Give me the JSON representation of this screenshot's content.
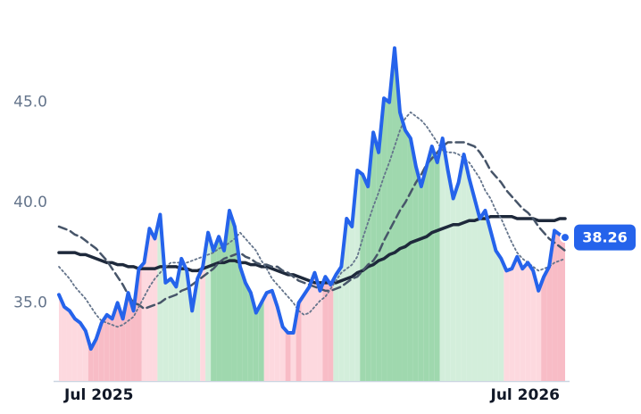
{
  "chart_data": {
    "type": "line",
    "categories": [
      null,
      null,
      null,
      null,
      null,
      null,
      null,
      "Jul 2025",
      null,
      null,
      null,
      null,
      null,
      null,
      null,
      null,
      null,
      null,
      null,
      null,
      null,
      null,
      null,
      null,
      null,
      null,
      null,
      null,
      null,
      null,
      null,
      null,
      null,
      null,
      null,
      null,
      null,
      null,
      null,
      null,
      null,
      null,
      null,
      null,
      null,
      null,
      null,
      null,
      null,
      null,
      null,
      null,
      null,
      null,
      null,
      null,
      null,
      null,
      null,
      null,
      null,
      null,
      null,
      null,
      null,
      null,
      null,
      null,
      null,
      null,
      null,
      null,
      null,
      null,
      null,
      null,
      null,
      null,
      null,
      null,
      null,
      null,
      null,
      null,
      null,
      null,
      null,
      "Jul 2026",
      null,
      null,
      null,
      null,
      null,
      null,
      null,
      null
    ],
    "ylim": [
      31.1,
      50.1
    ],
    "yticks": [
      {
        "value": 35,
        "label": "35.0"
      },
      {
        "value": 40,
        "label": "40.0"
      },
      {
        "value": 45,
        "label": "45.0"
      }
    ],
    "series": [
      {
        "color": "#2563eb",
        "style": "solid",
        "width": 4,
        "fill_under": true,
        "values": [
          35.4,
          34.8,
          34.6,
          34.2,
          34.0,
          33.6,
          32.7,
          33.2,
          34.0,
          34.4,
          34.2,
          35.0,
          34.2,
          35.5,
          34.6,
          36.7,
          37.0,
          38.7,
          38.2,
          39.4,
          36.0,
          36.2,
          35.8,
          37.2,
          36.6,
          34.6,
          36.2,
          36.8,
          38.5,
          37.6,
          38.3,
          37.6,
          39.6,
          38.8,
          36.8,
          36.0,
          35.5,
          34.5,
          35.0,
          35.5,
          35.6,
          34.8,
          33.8,
          33.5,
          33.5,
          35.0,
          35.4,
          35.8,
          36.5,
          35.6,
          36.3,
          35.9,
          36.4,
          36.8,
          39.2,
          38.8,
          41.6,
          41.4,
          40.8,
          43.5,
          42.5,
          45.2,
          45.0,
          47.7,
          44.5,
          43.6,
          43.2,
          41.8,
          40.8,
          41.8,
          42.8,
          42.0,
          43.2,
          41.6,
          40.2,
          41.0,
          42.4,
          41.2,
          40.2,
          39.2,
          39.6,
          38.6,
          37.6,
          37.2,
          36.6,
          36.7,
          37.3,
          36.7,
          37.0,
          36.6,
          35.6,
          36.3,
          36.8,
          38.6,
          38.4,
          38.26
        ]
      },
      {
        "color": "#1e293b",
        "style": "solid",
        "width": 3.5,
        "values": [
          37.5,
          37.5,
          37.5,
          37.5,
          37.4,
          37.4,
          37.3,
          37.2,
          37.1,
          37.0,
          37.0,
          36.9,
          36.9,
          36.8,
          36.8,
          36.7,
          36.7,
          36.7,
          36.7,
          36.8,
          36.8,
          36.8,
          36.8,
          36.7,
          36.7,
          36.6,
          36.6,
          36.7,
          36.8,
          36.9,
          37.0,
          37.0,
          37.1,
          37.1,
          37.0,
          37.0,
          36.9,
          36.9,
          36.8,
          36.8,
          36.7,
          36.6,
          36.5,
          36.4,
          36.4,
          36.3,
          36.2,
          36.1,
          36.0,
          36.0,
          36.0,
          36.0,
          36.0,
          36.1,
          36.2,
          36.3,
          36.5,
          36.6,
          36.8,
          36.9,
          37.1,
          37.2,
          37.4,
          37.5,
          37.7,
          37.8,
          38.0,
          38.1,
          38.2,
          38.3,
          38.5,
          38.6,
          38.7,
          38.8,
          38.9,
          38.9,
          39.0,
          39.1,
          39.1,
          39.2,
          39.2,
          39.3,
          39.3,
          39.3,
          39.3,
          39.3,
          39.2,
          39.2,
          39.2,
          39.2,
          39.1,
          39.1,
          39.1,
          39.1,
          39.2,
          39.2
        ]
      },
      {
        "color": "#475569",
        "style": "dashed",
        "width": 2.5,
        "values": [
          38.8,
          38.7,
          38.6,
          38.4,
          38.3,
          38.1,
          37.9,
          37.7,
          37.4,
          37.1,
          36.7,
          36.3,
          35.9,
          35.4,
          35.0,
          34.9,
          34.7,
          34.8,
          34.9,
          35.0,
          35.2,
          35.3,
          35.4,
          35.6,
          35.7,
          35.9,
          36.1,
          36.3,
          36.5,
          36.7,
          37.0,
          37.2,
          37.3,
          37.4,
          37.5,
          37.3,
          37.2,
          37.0,
          36.9,
          36.9,
          36.8,
          36.8,
          36.6,
          36.5,
          36.3,
          36.1,
          36.0,
          35.9,
          35.8,
          35.7,
          35.6,
          35.6,
          35.7,
          35.8,
          36.0,
          36.2,
          36.3,
          36.6,
          36.9,
          37.1,
          37.5,
          38.1,
          38.6,
          39.1,
          39.6,
          40.0,
          40.5,
          41.0,
          41.4,
          41.9,
          42.2,
          42.5,
          42.8,
          43.0,
          43.0,
          43.0,
          43.0,
          42.9,
          42.8,
          42.5,
          42.1,
          41.6,
          41.3,
          41.0,
          40.6,
          40.3,
          40.0,
          39.7,
          39.5,
          39.2,
          38.8,
          38.5,
          38.2,
          38.0,
          37.8,
          37.6
        ]
      },
      {
        "color": "#64748b",
        "style": "dotted",
        "width": 1.8,
        "values": [
          36.8,
          36.5,
          36.2,
          35.8,
          35.5,
          35.2,
          34.8,
          34.4,
          34.1,
          34.0,
          33.9,
          33.8,
          33.9,
          34.1,
          34.3,
          34.8,
          35.3,
          35.8,
          36.2,
          36.5,
          36.8,
          37.0,
          37.0,
          37.0,
          37.0,
          37.1,
          37.2,
          37.3,
          37.4,
          37.5,
          37.7,
          37.8,
          38.0,
          38.2,
          38.5,
          38.2,
          37.9,
          37.6,
          37.1,
          36.7,
          36.2,
          35.9,
          35.6,
          35.3,
          35.0,
          34.6,
          34.4,
          34.5,
          34.8,
          35.1,
          35.3,
          35.7,
          36.1,
          36.5,
          36.7,
          36.9,
          37.3,
          38.2,
          39.0,
          39.8,
          40.5,
          41.3,
          42.0,
          42.8,
          43.6,
          44.2,
          44.5,
          44.3,
          44.1,
          43.8,
          43.4,
          43.0,
          42.6,
          42.5,
          42.5,
          42.4,
          42.2,
          42.0,
          41.6,
          41.2,
          40.6,
          40.2,
          39.6,
          39.2,
          38.6,
          38.0,
          37.5,
          37.2,
          37.0,
          36.8,
          36.6,
          36.7,
          36.8,
          37.0,
          37.1,
          37.2
        ]
      }
    ],
    "band_colors": [
      "#fdd9df",
      "#fdd9df",
      "#fdd9df",
      "#fdd9df",
      "#fdd9df",
      "#fdd9df",
      "#f8bcc6",
      "#f8bcc6",
      "#f8bcc6",
      "#f8bcc6",
      "#f8bcc6",
      "#f8bcc6",
      "#f8bcc6",
      "#f8bcc6",
      "#f8bcc6",
      "#f8bcc6",
      "#fdd9df",
      "#fdd9df",
      "#fdd9df",
      "#d3eedb",
      "#d3eedb",
      "#d3eedb",
      "#d3eedb",
      "#d3eedb",
      "#d3eedb",
      "#d3eedb",
      "#d3eedb",
      "#fdd9df",
      "#d3eedb",
      "#9fd8ae",
      "#9fd8ae",
      "#9fd8ae",
      "#9fd8ae",
      "#9fd8ae",
      "#9fd8ae",
      "#9fd8ae",
      "#9fd8ae",
      "#9fd8ae",
      "#9fd8ae",
      "#fdd9df",
      "#fdd9df",
      "#fdd9df",
      "#fdd9df",
      "#f8bcc6",
      "#fdd9df",
      "#f8bcc6",
      "#fdd9df",
      "#fdd9df",
      "#fdd9df",
      "#fdd9df",
      "#f8bcc6",
      "#f8bcc6",
      "#d3eedb",
      "#d3eedb",
      "#d3eedb",
      "#d3eedb",
      "#d3eedb",
      "#9fd8ae",
      "#9fd8ae",
      "#9fd8ae",
      "#9fd8ae",
      "#9fd8ae",
      "#9fd8ae",
      "#9fd8ae",
      "#9fd8ae",
      "#9fd8ae",
      "#9fd8ae",
      "#9fd8ae",
      "#9fd8ae",
      "#9fd8ae",
      "#9fd8ae",
      "#9fd8ae",
      "#d3eedb",
      "#d3eedb",
      "#d3eedb",
      "#d3eedb",
      "#d3eedb",
      "#d3eedb",
      "#d3eedb",
      "#d3eedb",
      "#d3eedb",
      "#d3eedb",
      "#d3eedb",
      "#d3eedb",
      "#fdd9df",
      "#fdd9df",
      "#fdd9df",
      "#fdd9df",
      "#fdd9df",
      "#fdd9df",
      "#fdd9df",
      "#f8bcc6",
      "#f8bcc6",
      "#f8bcc6",
      "#f8bcc6",
      "#f8bcc6"
    ],
    "last_label_color": "#2563eb"
  }
}
